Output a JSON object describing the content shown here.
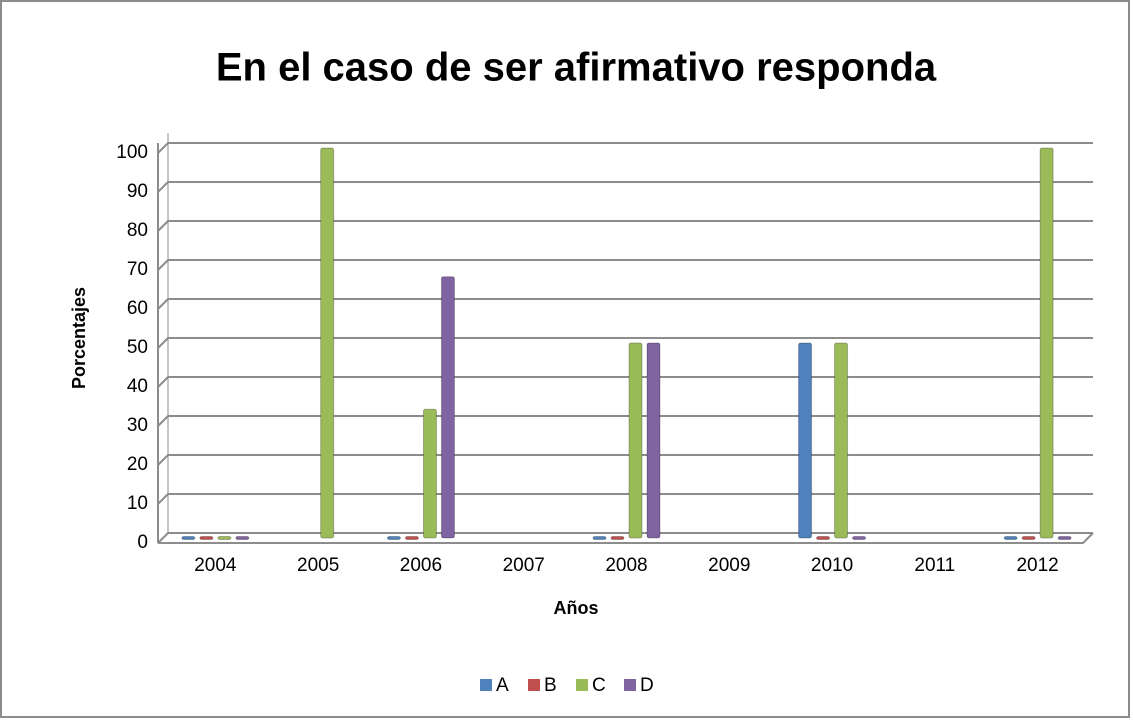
{
  "chart_data": {
    "type": "bar",
    "title": "En el caso de ser afirmativo responda",
    "x_label": "Años",
    "y_label": "Porcentajes",
    "categories": [
      "2004",
      "2005",
      "2006",
      "2007",
      "2008",
      "2009",
      "2010",
      "2011",
      "2012"
    ],
    "series": [
      {
        "name": "A",
        "color": "#4f81bd",
        "values": [
          0,
          null,
          0,
          null,
          0,
          null,
          50,
          null,
          0
        ]
      },
      {
        "name": "B",
        "color": "#c0504d",
        "values": [
          0,
          null,
          0,
          null,
          0,
          null,
          0,
          null,
          0
        ]
      },
      {
        "name": "C",
        "color": "#9bbb59",
        "values": [
          0,
          100,
          33,
          null,
          50,
          null,
          50,
          null,
          100
        ]
      },
      {
        "name": "D",
        "color": "#8064a2",
        "values": [
          0,
          null,
          67,
          null,
          50,
          null,
          0,
          null,
          0
        ]
      }
    ],
    "ylim": [
      0,
      100
    ],
    "yticks": [
      0,
      10,
      20,
      30,
      40,
      50,
      60,
      70,
      80,
      90,
      100
    ],
    "grid": true,
    "legend": "bottom"
  }
}
